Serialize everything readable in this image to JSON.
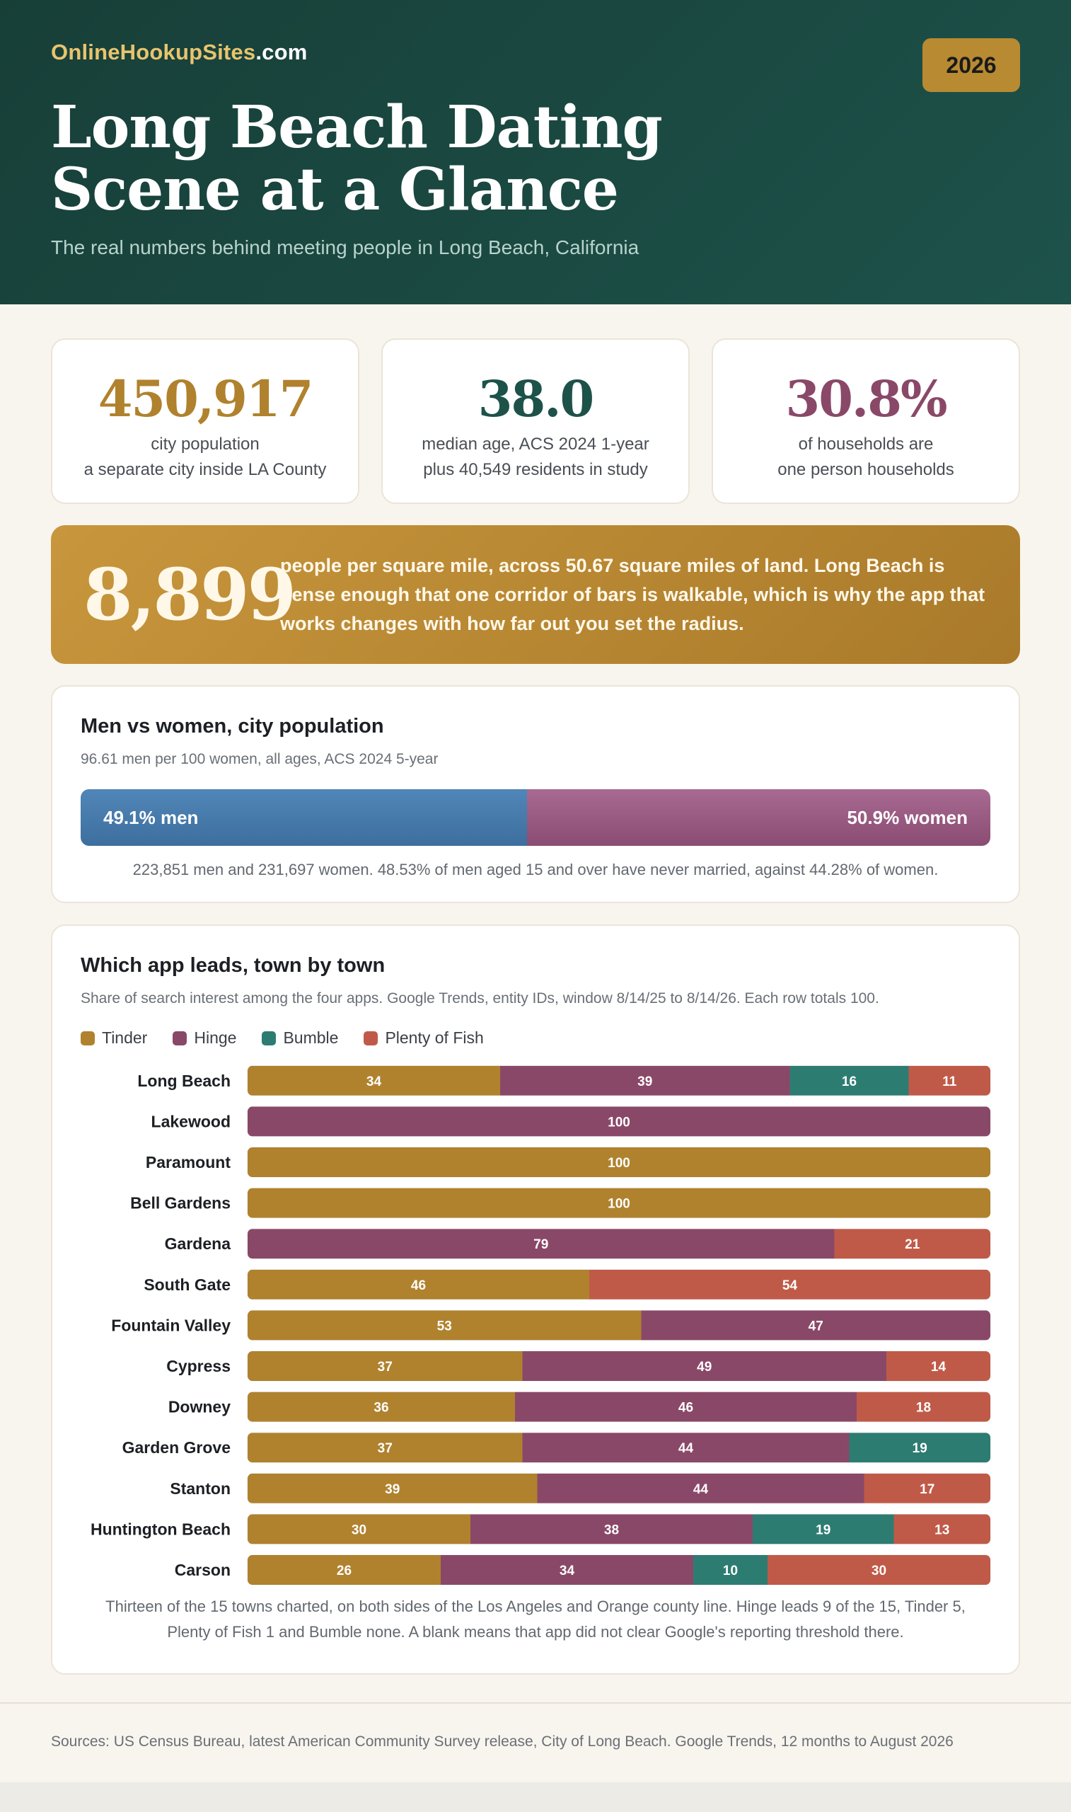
{
  "header": {
    "brand_main": "OnlineHookupSites",
    "brand_tld": ".com",
    "year_badge": "2026",
    "title_line1": "Long Beach Dating",
    "title_line2": "Scene at a Glance",
    "subtitle": "The real numbers behind meeting people in Long Beach, California"
  },
  "stats": [
    {
      "value": "450,917",
      "line1": "city population",
      "line2": "a separate city inside LA County",
      "color": "#b0822e"
    },
    {
      "value": "38.0",
      "line1": "median age, ACS 2024 1-year",
      "line2": "plus 40,549 residents in study",
      "color": "#1d5249"
    },
    {
      "value": "30.8%",
      "line1": "of households are",
      "line2": "one person households",
      "color": "#8a4868"
    }
  ],
  "density": {
    "value": "8,899",
    "text": "people per square mile, across 50.67 square miles of land. Long Beach is dense enough that one corridor of bars is walkable, which is why the app that works changes with how far out you set the radius."
  },
  "gender": {
    "title": "Men vs women, city population",
    "subtitle": "96.61 men per 100 women, all ages, ACS 2024 5-year",
    "men_pct": 49.1,
    "men_label": "49.1% men",
    "women_pct": 50.9,
    "women_label": "50.9% women",
    "note": "223,851 men and 231,697 women. 48.53% of men aged 15 and over have never married, against 44.28% of women."
  },
  "apps": {
    "title": "Which app leads, town by town",
    "subtitle": "Share of search interest among the four apps. Google Trends, entity IDs, window 8/14/25 to 8/14/26. Each row totals 100.",
    "note_line1": "Thirteen of the 15 towns charted, on both sides of the Los Angeles and Orange county line. Hinge leads 9 of the 15, Tinder 5,",
    "note_line2": "Plenty of Fish 1 and Bumble none. A blank means that app did not clear Google's reporting threshold there."
  },
  "chart_data": {
    "type": "bar",
    "orientation": "horizontal",
    "stacked": true,
    "categories": [
      "Long Beach",
      "Lakewood",
      "Paramount",
      "Bell Gardens",
      "Gardena",
      "South Gate",
      "Fountain Valley",
      "Cypress",
      "Downey",
      "Garden Grove",
      "Stanton",
      "Huntington Beach",
      "Carson"
    ],
    "series": [
      {
        "name": "Tinder",
        "color": "#b0822e",
        "values": [
          34,
          null,
          100,
          100,
          null,
          46,
          53,
          37,
          36,
          37,
          39,
          30,
          26
        ]
      },
      {
        "name": "Hinge",
        "color": "#8a4868",
        "values": [
          39,
          100,
          null,
          null,
          79,
          null,
          47,
          49,
          46,
          44,
          44,
          38,
          34
        ]
      },
      {
        "name": "Bumble",
        "color": "#2d7c72",
        "values": [
          16,
          null,
          null,
          null,
          null,
          null,
          null,
          null,
          null,
          19,
          null,
          19,
          10
        ]
      },
      {
        "name": "Plenty of Fish",
        "color": "#c05a48",
        "values": [
          11,
          null,
          null,
          null,
          21,
          54,
          null,
          14,
          18,
          null,
          17,
          13,
          30
        ]
      }
    ],
    "xlim": [
      0,
      100
    ],
    "legend": "top-left"
  },
  "footer": {
    "sources": "Sources: US Census Bureau, latest American Community Survey release, City of Long Beach. Google Trends, 12 months to August 2026"
  }
}
